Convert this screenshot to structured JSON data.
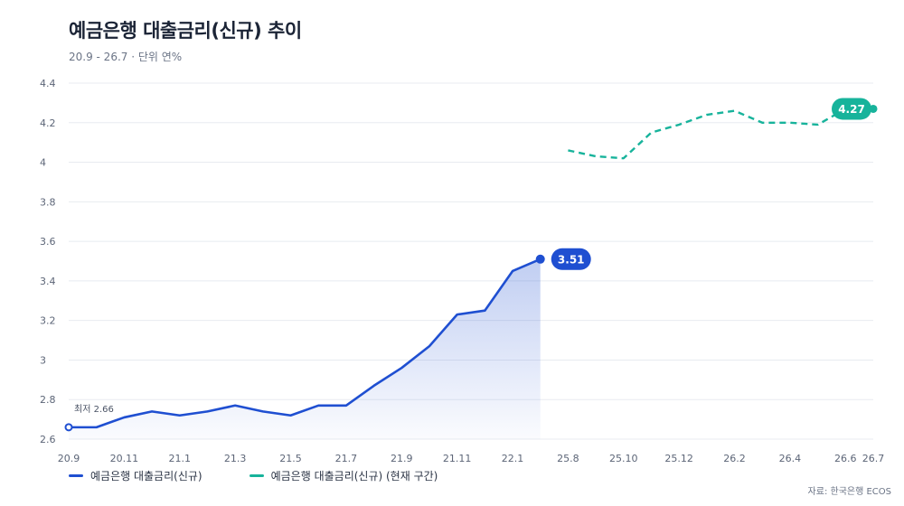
{
  "title": "예금은행 대출금리(신규) 추이",
  "subtitle": "20.9 - 26.7 · 단위 연%",
  "source": "자료: 한국은행 ECOS",
  "colors": {
    "series1": "#1f4fd1",
    "series2": "#17b39b",
    "grid": "#e8ebf0",
    "axis_text": "#5c6577"
  },
  "chart_data": {
    "type": "line",
    "x_ticks": [
      "20.9",
      "20.11",
      "21.1",
      "21.3",
      "21.5",
      "21.7",
      "21.9",
      "21.11",
      "22.1",
      "25.8",
      "25.10",
      "25.12",
      "26.2",
      "26.4",
      "26.6",
      "26.7"
    ],
    "ylim": [
      2.6,
      4.4
    ],
    "yticks": [
      "2.6",
      "2.8",
      "3",
      "3.2",
      "3.4",
      "3.6",
      "3.8",
      "4",
      "4.2",
      "4.4"
    ],
    "grid": true,
    "series": [
      {
        "name": "예금은행 대출금리(신규)",
        "color": "#1f4fd1",
        "style": "solid",
        "area_fill": true,
        "x": [
          "20.9",
          "20.10",
          "20.11",
          "20.12",
          "21.1",
          "21.2",
          "21.3",
          "21.4",
          "21.5",
          "21.6",
          "21.7",
          "21.8",
          "21.9",
          "21.10",
          "21.11",
          "21.12",
          "22.1",
          "22.2"
        ],
        "values": [
          2.66,
          2.66,
          2.71,
          2.74,
          2.72,
          2.74,
          2.77,
          2.74,
          2.72,
          2.77,
          2.77,
          2.87,
          2.96,
          3.07,
          3.23,
          3.25,
          3.45,
          3.51
        ]
      },
      {
        "name": "예금은행 대출금리(신규) (현재 구간)",
        "color": "#17b39b",
        "style": "dashed",
        "x": [
          "25.8",
          "25.9",
          "25.10",
          "25.11",
          "25.12",
          "26.1",
          "26.2",
          "26.3",
          "26.4",
          "26.5",
          "26.6",
          "26.7"
        ],
        "values": [
          4.06,
          4.03,
          4.02,
          4.15,
          4.19,
          4.24,
          4.26,
          4.2,
          4.2,
          4.19,
          4.27,
          4.27
        ]
      }
    ],
    "annotations": {
      "min_label": "최저 2.66",
      "end_label_1": "3.51",
      "end_label_2": "4.27"
    },
    "legend_position": "bottom-left"
  }
}
